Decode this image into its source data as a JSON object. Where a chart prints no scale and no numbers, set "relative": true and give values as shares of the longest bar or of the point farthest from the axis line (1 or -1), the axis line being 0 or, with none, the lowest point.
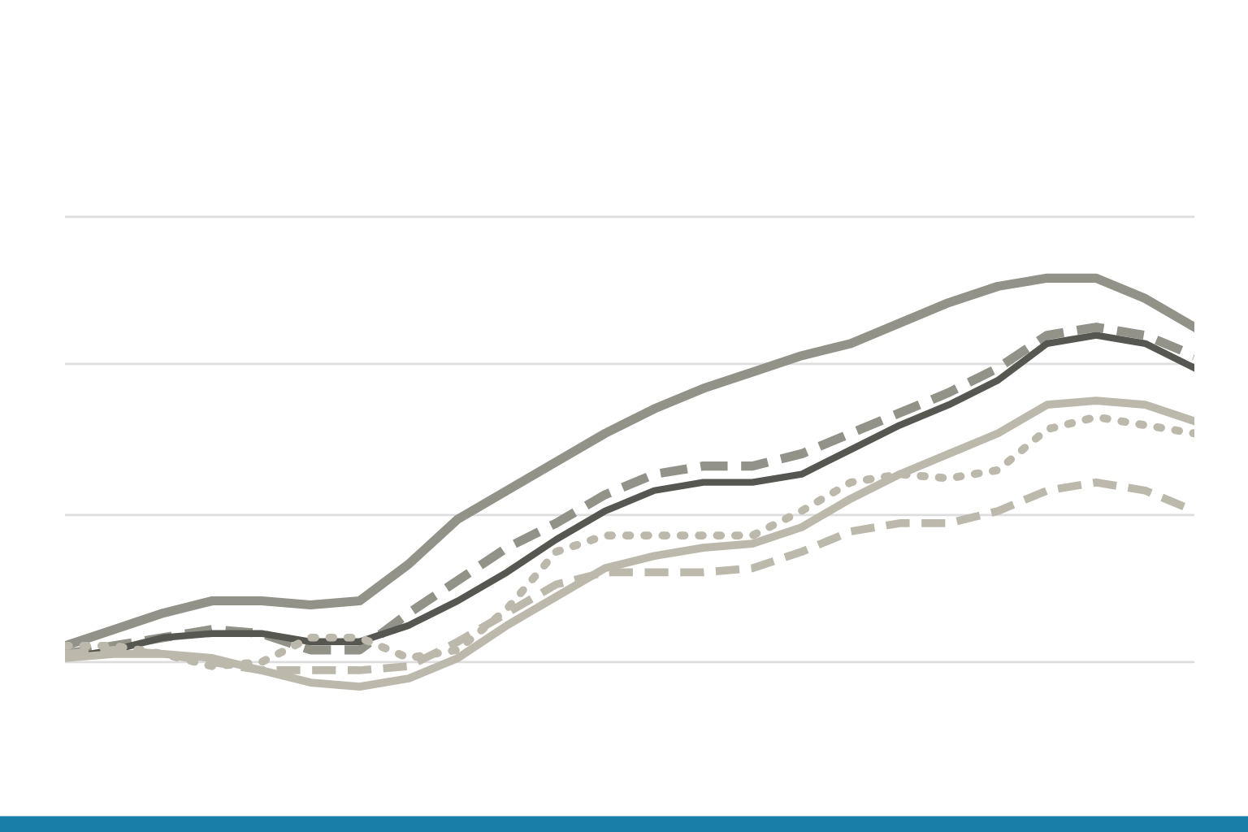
{
  "chart_data": {
    "type": "line",
    "relative": true,
    "ref_lines": [
      {
        "axis": "y",
        "value": 0.06,
        "color": "#dddddd"
      },
      {
        "axis": "y",
        "value": 0.42,
        "color": "#dddddd"
      },
      {
        "axis": "y",
        "value": 0.79,
        "color": "#dddddd"
      },
      {
        "axis": "y",
        "value": 1.15,
        "color": "#dddddd"
      }
    ],
    "categories": [
      null,
      null,
      null,
      null,
      null,
      null,
      null,
      null,
      null,
      null,
      null,
      null,
      null,
      null,
      null,
      null,
      null,
      null,
      null,
      null,
      null,
      null,
      null,
      null
    ],
    "series": [
      {
        "color": "#929289",
        "line_style": "solid",
        "values": [
          0.1,
          0.14,
          0.18,
          0.21,
          0.21,
          0.2,
          0.21,
          0.3,
          0.41,
          0.48,
          0.55,
          0.62,
          0.68,
          0.73,
          0.77,
          0.81,
          0.84,
          0.89,
          0.94,
          0.98,
          1,
          1,
          0.95,
          0.88
        ]
      },
      {
        "color": "#929289",
        "line_style": "dashed",
        "values": [
          0.08,
          0.1,
          0.12,
          0.14,
          0.13,
          0.09,
          0.09,
          0.18,
          0.26,
          0.34,
          0.4,
          0.47,
          0.52,
          0.54,
          0.54,
          0.57,
          0.62,
          0.67,
          0.72,
          0.78,
          0.86,
          0.88,
          0.86,
          0.81
        ]
      },
      {
        "color": "#575751",
        "line_style": "solid",
        "values": [
          0.07,
          0.09,
          0.12,
          0.13,
          0.13,
          0.11,
          0.11,
          0.15,
          0.21,
          0.28,
          0.36,
          0.43,
          0.48,
          0.5,
          0.5,
          0.52,
          0.58,
          0.64,
          0.69,
          0.75,
          0.84,
          0.86,
          0.84,
          0.78
        ]
      },
      {
        "color": "#bcb9ac",
        "line_style": "solid",
        "values": [
          0.07,
          0.08,
          0.08,
          0.07,
          0.04,
          0.01,
          0,
          0.02,
          0.07,
          0.15,
          0.22,
          0.29,
          0.32,
          0.34,
          0.35,
          0.39,
          0.46,
          0.52,
          0.57,
          0.62,
          0.69,
          0.7,
          0.69,
          0.65
        ]
      },
      {
        "color": "#bcb9ac",
        "line_style": "dotted",
        "values": [
          0.1,
          0.1,
          0.08,
          0.05,
          0.06,
          0.12,
          0.12,
          0.07,
          0.09,
          0.19,
          0.33,
          0.37,
          0.37,
          0.37,
          0.37,
          0.43,
          0.5,
          0.52,
          0.51,
          0.53,
          0.63,
          0.66,
          0.64,
          0.62
        ]
      },
      {
        "color": "#bcb9ac",
        "line_style": "dashed",
        "values": [
          0.08,
          0.09,
          0.08,
          0.06,
          0.04,
          0.04,
          0.04,
          0.05,
          0.11,
          0.18,
          0.25,
          0.28,
          0.28,
          0.28,
          0.29,
          0.33,
          0.38,
          0.4,
          0.4,
          0.43,
          0.48,
          0.5,
          0.48,
          0.43
        ]
      }
    ]
  }
}
